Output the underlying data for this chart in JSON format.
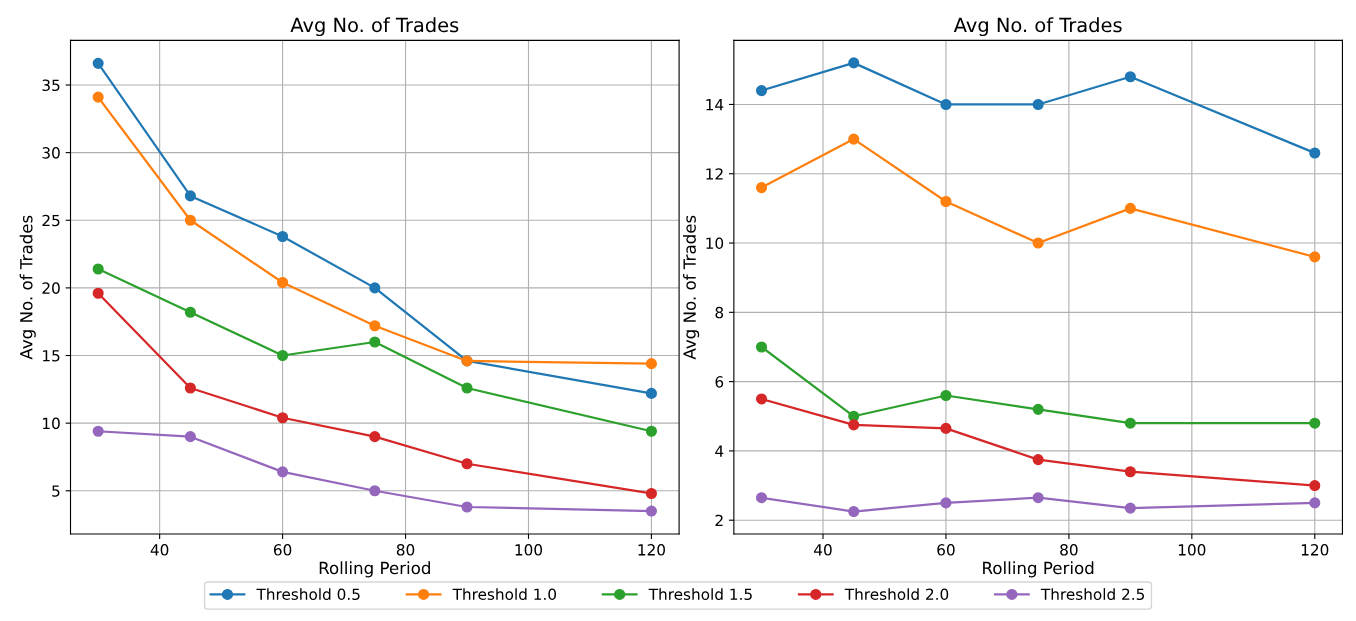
{
  "chart_data": [
    {
      "type": "line",
      "title": "Avg No. of Trades",
      "xlabel": "Rolling Period",
      "ylabel": "Avg No. of Trades",
      "x": [
        30,
        45,
        60,
        75,
        90,
        120
      ],
      "xlim": [
        25.5,
        124.5
      ],
      "xticks": [
        40,
        60,
        80,
        100,
        120
      ],
      "ylim": [
        1.8,
        38.3
      ],
      "yticks": [
        5,
        10,
        15,
        20,
        25,
        30,
        35
      ],
      "grid": true,
      "marker": "circle",
      "legend": "bottom",
      "series": [
        {
          "name": "Threshold 0.5",
          "color": "#1f77b4",
          "values": [
            36.6,
            26.8,
            23.8,
            20.0,
            14.6,
            12.2
          ]
        },
        {
          "name": "Threshold 1.0",
          "color": "#ff7f0e",
          "values": [
            34.1,
            25.0,
            20.4,
            17.2,
            14.6,
            14.4
          ]
        },
        {
          "name": "Threshold 1.5",
          "color": "#2ca02c",
          "values": [
            21.4,
            18.2,
            15.0,
            16.0,
            12.6,
            9.4
          ]
        },
        {
          "name": "Threshold 2.0",
          "color": "#d62728",
          "values": [
            19.6,
            12.6,
            10.4,
            9.0,
            7.0,
            4.8
          ]
        },
        {
          "name": "Threshold 2.5",
          "color": "#9467bd",
          "values": [
            9.4,
            9.0,
            6.4,
            5.0,
            3.8,
            3.5
          ]
        }
      ]
    },
    {
      "type": "line",
      "title": "Avg No. of Trades",
      "xlabel": "Rolling Period",
      "ylabel": "Avg No. of Trades",
      "x": [
        30,
        45,
        60,
        75,
        90,
        120
      ],
      "xlim": [
        25.5,
        124.5
      ],
      "xticks": [
        40,
        60,
        80,
        100,
        120
      ],
      "ylim": [
        1.6,
        15.85
      ],
      "yticks": [
        2,
        4,
        6,
        8,
        10,
        12,
        14
      ],
      "grid": true,
      "marker": "circle",
      "series": [
        {
          "color": "#1f77b4",
          "values": [
            14.4,
            15.2,
            14.0,
            14.0,
            14.8,
            12.6
          ]
        },
        {
          "color": "#ff7f0e",
          "values": [
            11.6,
            13.0,
            11.2,
            10.0,
            11.0,
            9.6
          ]
        },
        {
          "color": "#2ca02c",
          "values": [
            7.0,
            5.0,
            5.6,
            5.2,
            4.8,
            4.8
          ]
        },
        {
          "color": "#d62728",
          "values": [
            5.5,
            4.75,
            4.65,
            3.75,
            3.4,
            3.0
          ]
        },
        {
          "color": "#9467bd",
          "values": [
            2.65,
            2.25,
            2.5,
            2.65,
            2.35,
            2.5
          ]
        }
      ]
    }
  ]
}
